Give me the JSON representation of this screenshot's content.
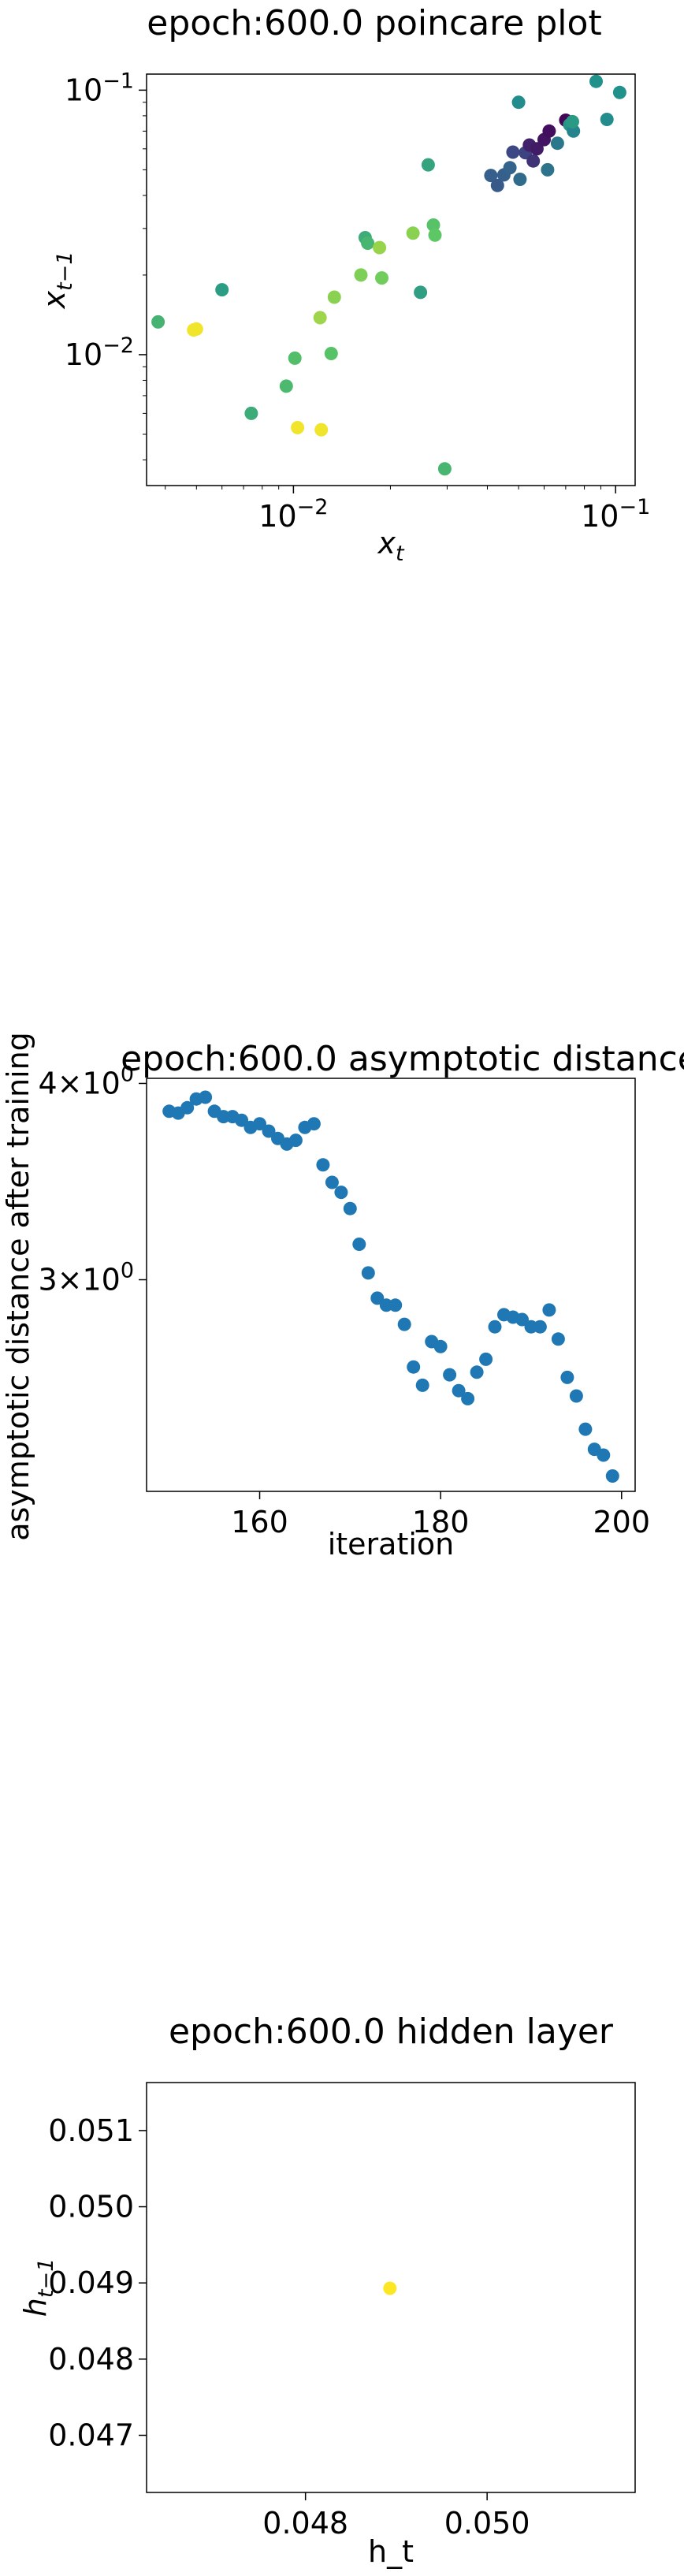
{
  "chart_data": [
    {
      "type": "scatter",
      "title": "epoch:600.0 poincare plot",
      "xlabel_base": "x",
      "xlabel_sub": "t",
      "ylabel_base": "x",
      "ylabel_sub": "t−1",
      "xscale": "log",
      "yscale": "log",
      "xlim": [
        0.0035,
        0.115
      ],
      "ylim": [
        0.0032,
        0.115
      ],
      "xticks": [
        {
          "value": 0.01,
          "base": "10",
          "exp": "−2"
        },
        {
          "value": 0.1,
          "base": "10",
          "exp": "−1"
        }
      ],
      "yticks": [
        {
          "value": 0.01,
          "base": "10",
          "exp": "−2"
        },
        {
          "value": 0.1,
          "base": "10",
          "exp": "−1"
        }
      ],
      "colormap": "viridis",
      "colorscale": [
        "#440154",
        "#3b528b",
        "#21918c",
        "#5ec962",
        "#fde725"
      ],
      "points": [
        {
          "x": 0.0038,
          "y": 0.0133,
          "c": 0.65
        },
        {
          "x": 0.0049,
          "y": 0.0124,
          "c": 0.98
        },
        {
          "x": 0.005,
          "y": 0.0125,
          "c": 0.98
        },
        {
          "x": 0.006,
          "y": 0.0176,
          "c": 0.55
        },
        {
          "x": 0.0074,
          "y": 0.006,
          "c": 0.62
        },
        {
          "x": 0.0095,
          "y": 0.0076,
          "c": 0.68
        },
        {
          "x": 0.0101,
          "y": 0.0097,
          "c": 0.7
        },
        {
          "x": 0.0103,
          "y": 0.0053,
          "c": 0.98
        },
        {
          "x": 0.0122,
          "y": 0.0052,
          "c": 0.98
        },
        {
          "x": 0.0121,
          "y": 0.0138,
          "c": 0.85
        },
        {
          "x": 0.0131,
          "y": 0.0101,
          "c": 0.72
        },
        {
          "x": 0.0134,
          "y": 0.0165,
          "c": 0.82
        },
        {
          "x": 0.0162,
          "y": 0.02,
          "c": 0.8
        },
        {
          "x": 0.0167,
          "y": 0.0277,
          "c": 0.62
        },
        {
          "x": 0.017,
          "y": 0.0264,
          "c": 0.66
        },
        {
          "x": 0.0185,
          "y": 0.0254,
          "c": 0.84
        },
        {
          "x": 0.0188,
          "y": 0.0195,
          "c": 0.78
        },
        {
          "x": 0.0235,
          "y": 0.0288,
          "c": 0.82
        },
        {
          "x": 0.0248,
          "y": 0.0172,
          "c": 0.56
        },
        {
          "x": 0.0262,
          "y": 0.0522,
          "c": 0.58
        },
        {
          "x": 0.0272,
          "y": 0.0309,
          "c": 0.72
        },
        {
          "x": 0.0275,
          "y": 0.0283,
          "c": 0.74
        },
        {
          "x": 0.0295,
          "y": 0.0037,
          "c": 0.66
        },
        {
          "x": 0.041,
          "y": 0.0476,
          "c": 0.3
        },
        {
          "x": 0.043,
          "y": 0.0436,
          "c": 0.28
        },
        {
          "x": 0.045,
          "y": 0.0478,
          "c": 0.3
        },
        {
          "x": 0.047,
          "y": 0.0509,
          "c": 0.32
        },
        {
          "x": 0.048,
          "y": 0.0583,
          "c": 0.22
        },
        {
          "x": 0.0505,
          "y": 0.046,
          "c": 0.35
        },
        {
          "x": 0.05,
          "y": 0.09,
          "c": 0.48
        },
        {
          "x": 0.0525,
          "y": 0.058,
          "c": 0.2
        },
        {
          "x": 0.054,
          "y": 0.062,
          "c": 0.1
        },
        {
          "x": 0.0555,
          "y": 0.054,
          "c": 0.15
        },
        {
          "x": 0.057,
          "y": 0.06,
          "c": 0.08
        },
        {
          "x": 0.06,
          "y": 0.065,
          "c": 0.06
        },
        {
          "x": 0.0615,
          "y": 0.05,
          "c": 0.38
        },
        {
          "x": 0.0622,
          "y": 0.07,
          "c": 0.04
        },
        {
          "x": 0.066,
          "y": 0.063,
          "c": 0.4
        },
        {
          "x": 0.07,
          "y": 0.077,
          "c": 0.02
        },
        {
          "x": 0.072,
          "y": 0.074,
          "c": 0.52
        },
        {
          "x": 0.074,
          "y": 0.07,
          "c": 0.45
        },
        {
          "x": 0.0735,
          "y": 0.076,
          "c": 0.54
        },
        {
          "x": 0.087,
          "y": 0.108,
          "c": 0.5
        },
        {
          "x": 0.094,
          "y": 0.0775,
          "c": 0.48
        },
        {
          "x": 0.103,
          "y": 0.098,
          "c": 0.5
        }
      ]
    },
    {
      "type": "scatter",
      "title": "epoch:600.0 asymptotic distance",
      "xlabel": "iteration",
      "ylabel": "asymptotic distance after training",
      "xscale": "linear",
      "yscale": "log",
      "xlim": [
        147.5,
        201.5
      ],
      "ylim": [
        2.2,
        4.03
      ],
      "xticks": [
        160,
        180,
        200
      ],
      "yticks": [
        {
          "value": 4,
          "label": "4×10",
          "exp": "0"
        },
        {
          "value": 3,
          "label": "3×10",
          "exp": "0"
        }
      ],
      "color": "#1f77b4",
      "x": [
        150,
        151,
        152,
        153,
        154,
        155,
        156,
        157,
        158,
        159,
        160,
        161,
        162,
        163,
        164,
        165,
        166,
        167,
        168,
        169,
        170,
        171,
        172,
        173,
        174,
        175,
        176,
        177,
        178,
        179,
        180,
        181,
        182,
        183,
        184,
        185,
        186,
        187,
        188,
        189,
        190,
        191,
        192,
        193,
        194,
        195,
        196,
        197,
        198,
        199
      ],
      "y": [
        3.84,
        3.83,
        3.86,
        3.91,
        3.92,
        3.84,
        3.81,
        3.81,
        3.79,
        3.75,
        3.77,
        3.73,
        3.69,
        3.66,
        3.68,
        3.75,
        3.77,
        3.55,
        3.46,
        3.41,
        3.33,
        3.16,
        3.03,
        2.92,
        2.89,
        2.89,
        2.81,
        2.64,
        2.57,
        2.74,
        2.72,
        2.61,
        2.55,
        2.52,
        2.62,
        2.67,
        2.8,
        2.85,
        2.84,
        2.83,
        2.8,
        2.8,
        2.87,
        2.75,
        2.6,
        2.53,
        2.41,
        2.34,
        2.32,
        2.25
      ]
    },
    {
      "type": "scatter",
      "title": "epoch:600.0 hidden layer",
      "xlabel": "h_t",
      "ylabel_base": "h",
      "ylabel_sub": "t−1",
      "xscale": "linear",
      "yscale": "linear",
      "xlim": [
        0.04625,
        0.05163
      ],
      "ylim": [
        0.04625,
        0.05163
      ],
      "xticks": [
        0.048,
        0.05
      ],
      "yticks": [
        0.047,
        0.048,
        0.049,
        0.05,
        0.051
      ],
      "color": "#fde725",
      "points": [
        {
          "x": 0.04893,
          "y": 0.04893
        }
      ]
    }
  ]
}
